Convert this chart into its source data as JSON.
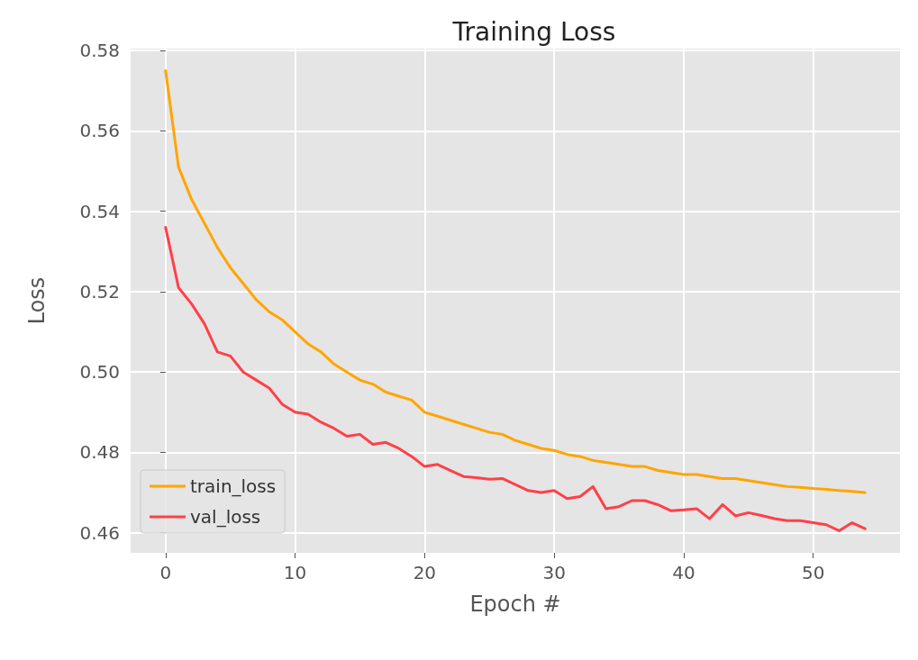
{
  "chart_data": {
    "type": "line",
    "title": "Training Loss",
    "xlabel": "Epoch #",
    "ylabel": "Loss",
    "x": [
      0,
      1,
      2,
      3,
      4,
      5,
      6,
      7,
      8,
      9,
      10,
      11,
      12,
      13,
      14,
      15,
      16,
      17,
      18,
      19,
      20,
      21,
      22,
      23,
      24,
      25,
      26,
      27,
      28,
      29,
      30,
      31,
      32,
      33,
      34,
      35,
      36,
      37,
      38,
      39,
      40,
      41,
      42,
      43,
      44,
      45,
      46,
      47,
      48,
      49,
      50,
      51,
      52,
      53,
      54
    ],
    "series": [
      {
        "name": "train_loss",
        "color": "#ffa500",
        "values": [
          0.575,
          0.551,
          0.543,
          0.537,
          0.531,
          0.526,
          0.522,
          0.518,
          0.515,
          0.513,
          0.51,
          0.507,
          0.505,
          0.502,
          0.5,
          0.498,
          0.497,
          0.495,
          0.494,
          0.493,
          0.49,
          0.489,
          0.488,
          0.487,
          0.486,
          0.485,
          0.4845,
          0.483,
          0.482,
          0.481,
          0.4805,
          0.4795,
          0.479,
          0.478,
          0.4775,
          0.477,
          0.4765,
          0.4765,
          0.4755,
          0.475,
          0.4745,
          0.4745,
          0.474,
          0.4735,
          0.4735,
          0.473,
          0.4725,
          0.472,
          0.4715,
          0.4713,
          0.471,
          0.4708,
          0.4705,
          0.4703,
          0.47
        ]
      },
      {
        "name": "val_loss",
        "color": "#ff4049",
        "values": [
          0.536,
          0.521,
          0.517,
          0.512,
          0.505,
          0.504,
          0.5,
          0.498,
          0.496,
          0.492,
          0.49,
          0.4895,
          0.4875,
          0.486,
          0.484,
          0.4845,
          0.482,
          0.4825,
          0.481,
          0.479,
          0.4765,
          0.477,
          0.4755,
          0.474,
          0.4737,
          0.4733,
          0.4735,
          0.472,
          0.4705,
          0.47,
          0.4705,
          0.4685,
          0.469,
          0.4715,
          0.466,
          0.4665,
          0.468,
          0.468,
          0.467,
          0.4655,
          0.4657,
          0.466,
          0.4635,
          0.467,
          0.4642,
          0.465,
          0.4643,
          0.4635,
          0.463,
          0.463,
          0.4625,
          0.462,
          0.4605,
          0.4625,
          0.461
        ]
      }
    ],
    "xlim": [
      -2.7,
      56.7
    ],
    "xticks": [
      0,
      10,
      20,
      30,
      40,
      50
    ],
    "ylim": [
      0.455,
      0.5805
    ],
    "yticks": [
      0.46,
      0.48,
      {
        "value": 0.5,
        "label": "0.50"
      },
      0.52,
      0.54,
      0.56,
      0.58
    ],
    "grid": true,
    "legend": "bottom left",
    "marker": "none",
    "line_style": "solid"
  }
}
